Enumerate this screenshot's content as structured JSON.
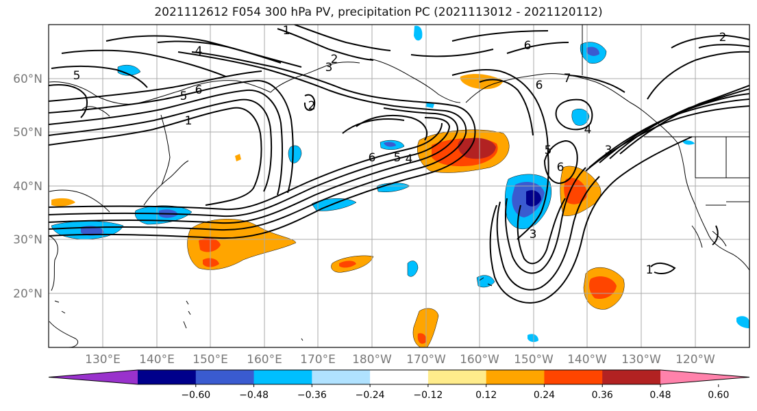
{
  "title": "2021112612 F054 300 hPa PV, precipitation PC (2021113012 - 2021120112)",
  "lat_labels": [
    "60°N",
    "50°N",
    "40°N",
    "30°N",
    "20°N"
  ],
  "lon_labels": [
    "130°E",
    "140°E",
    "150°E",
    "160°E",
    "170°E",
    "180°W",
    "170°W",
    "160°W",
    "150°W",
    "140°W",
    "130°W",
    "120°W"
  ],
  "contour_labels": [
    "1",
    "2",
    "3",
    "4",
    "5",
    "6",
    "7"
  ],
  "colorbar": {
    "tick_labels": [
      "−0.60",
      "−0.48",
      "−0.36",
      "−0.24",
      "−0.12",
      "0.12",
      "0.24",
      "0.36",
      "0.48",
      "0.60"
    ],
    "colors": [
      "#9932cc",
      "#00008b",
      "#3a5bd0",
      "#00bfff",
      "#b0e2ff",
      "#ffffff",
      "#ffec8b",
      "#ffa500",
      "#ff4500",
      "#b22222",
      "#ff82ab"
    ]
  },
  "line_color": "#000000",
  "grid_color": "#aaaaaa"
}
